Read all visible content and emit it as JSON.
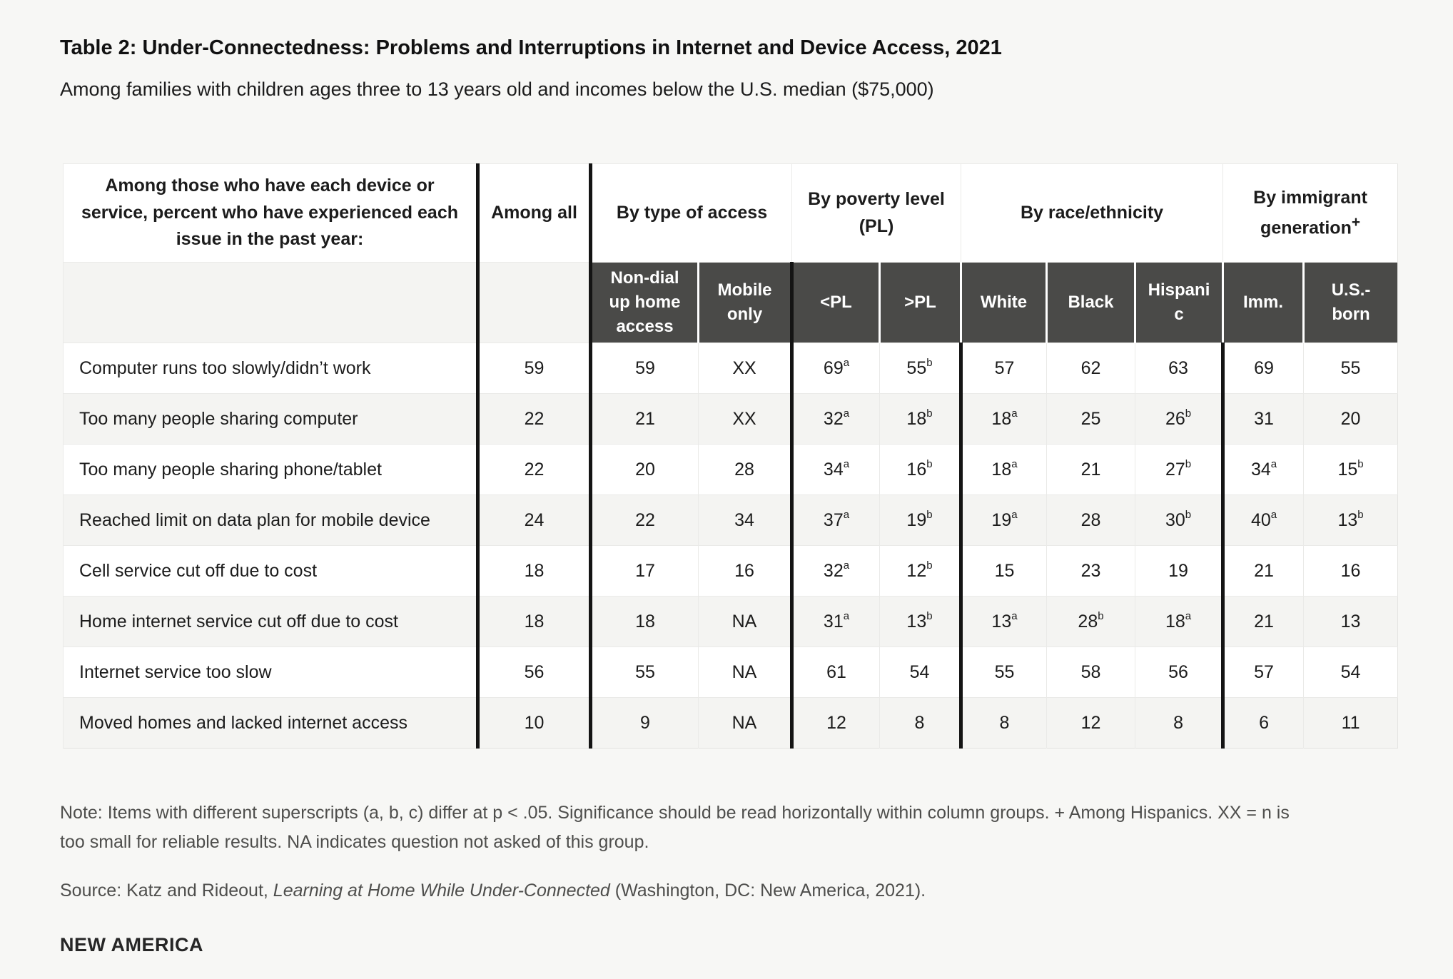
{
  "page": {
    "title": "Table 2: Under-Connectedness: Problems and Interruptions in Internet and Device Access, 2021",
    "subtitle": "Among families with children ages three to 13 years old and incomes below the U.S. median ($75,000)",
    "note": "Note: Items with different superscripts (a, b, c) differ at p < .05. Significance should be read horizontally within column groups. + Among Hispanics. XX = n is too small for reliable results. NA indicates question not asked of this group.",
    "source_prefix": "Source: Katz and Rideout, ",
    "source_book": "Learning at Home While Under-Connected",
    "source_suffix": " (Washington, DC: New America, 2021).",
    "logo": "NEW AMERICA"
  },
  "colors": {
    "page_background": "#f7f7f5",
    "table_background": "#ffffff",
    "row_stripe": "#f4f4f2",
    "dark_header_background": "#4a4a48",
    "dark_header_text": "#ffffff",
    "thick_rule": "#141414",
    "thin_rule": "#eaeae8",
    "note_text": "#4e4e4c"
  },
  "table": {
    "corner_header": "Among those who have each device or service, percent who have experienced each issue in the past year:",
    "among_all_label": "Among all",
    "group_headers": [
      "By type of access",
      "By poverty level (PL)",
      "By race/ethnicity",
      "By immigrant generation"
    ],
    "immigrant_sup": "+",
    "sub_headers": [
      "Non-dial up home access",
      "Mobile only",
      "<PL",
      ">PL",
      "White",
      "Black",
      "Hispanic",
      "Imm.",
      "U.S.-born"
    ],
    "rows": [
      {
        "label": "Computer runs too slowly/didn’t work",
        "values": [
          {
            "v": "59"
          },
          {
            "v": "59"
          },
          {
            "v": "XX"
          },
          {
            "v": "69",
            "s": "a"
          },
          {
            "v": "55",
            "s": "b"
          },
          {
            "v": "57"
          },
          {
            "v": "62"
          },
          {
            "v": "63"
          },
          {
            "v": "69"
          },
          {
            "v": "55"
          }
        ]
      },
      {
        "label": "Too many people sharing computer",
        "values": [
          {
            "v": "22"
          },
          {
            "v": "21"
          },
          {
            "v": "XX"
          },
          {
            "v": "32",
            "s": "a"
          },
          {
            "v": "18",
            "s": "b"
          },
          {
            "v": "18",
            "s": "a"
          },
          {
            "v": "25"
          },
          {
            "v": "26",
            "s": "b"
          },
          {
            "v": "31"
          },
          {
            "v": "20"
          }
        ]
      },
      {
        "label": "Too many people sharing phone/tablet",
        "values": [
          {
            "v": "22"
          },
          {
            "v": "20"
          },
          {
            "v": "28"
          },
          {
            "v": "34",
            "s": "a"
          },
          {
            "v": "16",
            "s": "b"
          },
          {
            "v": "18",
            "s": "a"
          },
          {
            "v": "21"
          },
          {
            "v": "27",
            "s": "b"
          },
          {
            "v": "34",
            "s": "a"
          },
          {
            "v": "15",
            "s": "b"
          }
        ]
      },
      {
        "label": "Reached limit on data plan for mobile device",
        "values": [
          {
            "v": "24"
          },
          {
            "v": "22"
          },
          {
            "v": "34"
          },
          {
            "v": "37",
            "s": "a"
          },
          {
            "v": "19",
            "s": "b"
          },
          {
            "v": "19",
            "s": "a"
          },
          {
            "v": "28"
          },
          {
            "v": "30",
            "s": "b"
          },
          {
            "v": "40",
            "s": "a"
          },
          {
            "v": "13",
            "s": "b"
          }
        ]
      },
      {
        "label": "Cell service cut off due to cost",
        "values": [
          {
            "v": "18"
          },
          {
            "v": "17"
          },
          {
            "v": "16"
          },
          {
            "v": "32",
            "s": "a"
          },
          {
            "v": "12",
            "s": "b"
          },
          {
            "v": "15"
          },
          {
            "v": "23"
          },
          {
            "v": "19"
          },
          {
            "v": "21"
          },
          {
            "v": "16"
          }
        ]
      },
      {
        "label": "Home internet service cut off due to cost",
        "values": [
          {
            "v": "18"
          },
          {
            "v": "18"
          },
          {
            "v": "NA"
          },
          {
            "v": "31",
            "s": "a"
          },
          {
            "v": "13",
            "s": "b"
          },
          {
            "v": "13",
            "s": "a"
          },
          {
            "v": "28",
            "s": "b"
          },
          {
            "v": "18",
            "s": "a"
          },
          {
            "v": "21"
          },
          {
            "v": "13"
          }
        ]
      },
      {
        "label": "Internet service too slow",
        "values": [
          {
            "v": "56"
          },
          {
            "v": "55"
          },
          {
            "v": "NA"
          },
          {
            "v": "61"
          },
          {
            "v": "54"
          },
          {
            "v": "55"
          },
          {
            "v": "58"
          },
          {
            "v": "56"
          },
          {
            "v": "57"
          },
          {
            "v": "54"
          }
        ]
      },
      {
        "label": "Moved homes and lacked internet access",
        "values": [
          {
            "v": "10"
          },
          {
            "v": "9"
          },
          {
            "v": "NA"
          },
          {
            "v": "12"
          },
          {
            "v": "8"
          },
          {
            "v": "8"
          },
          {
            "v": "12"
          },
          {
            "v": "8"
          },
          {
            "v": "6"
          },
          {
            "v": "11"
          }
        ]
      }
    ]
  }
}
